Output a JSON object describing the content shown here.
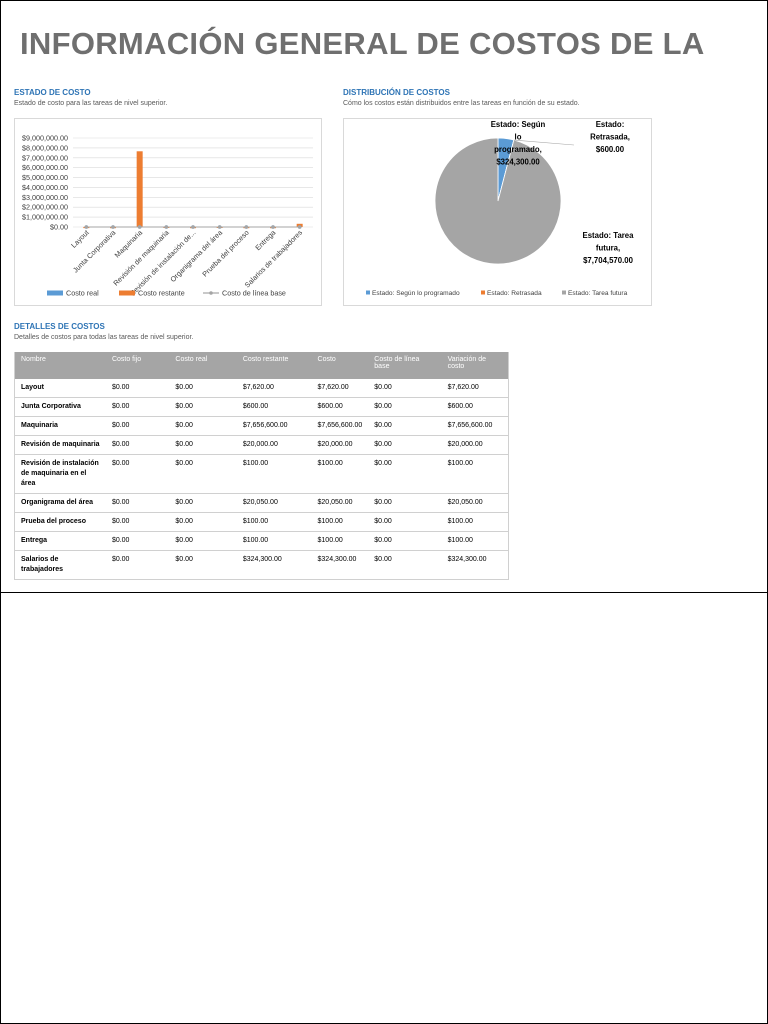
{
  "title": "INFORMACIÓN GENERAL DE COSTOS DE LA",
  "estado": {
    "heading": "ESTADO DE COSTO",
    "subtitle": "Estado de costo para las tareas de nivel superior."
  },
  "distribucion": {
    "heading": "DISTRIBUCIÓN DE COSTOS",
    "subtitle": "Cómo los costos están distribuidos entre las tareas en función de su estado."
  },
  "detalles": {
    "heading": "DETALLES DE COSTOS",
    "subtitle": "Detalles de costos para todas las tareas de nivel superior."
  },
  "chart_data": [
    {
      "type": "bar",
      "categories": [
        "Layout",
        "Junta Corporativa",
        "Maquinaria",
        "Revisión de maquinaria",
        "Revisión de instalación de...",
        "Organigrama del área",
        "Prueba del proceso",
        "Entrega",
        "Salarios de trabajadores"
      ],
      "series": [
        {
          "name": "Costo real",
          "color": "#5b9bd5",
          "values": [
            0,
            0,
            0,
            0,
            0,
            0,
            0,
            0,
            0
          ]
        },
        {
          "name": "Costo restante",
          "color": "#ed7d31",
          "values": [
            7620,
            600,
            7656600,
            20000,
            100,
            20050,
            100,
            100,
            324300
          ]
        },
        {
          "name": "Costo de línea base",
          "color": "#a5a5a5",
          "values": [
            0,
            0,
            0,
            0,
            0,
            0,
            0,
            0,
            0
          ]
        }
      ],
      "yticks": [
        "$0.00",
        "$1,000,000.00",
        "$2,000,000.00",
        "$3,000,000.00",
        "$4,000,000.00",
        "$5,000,000.00",
        "$6,000,000.00",
        "$7,000,000.00",
        "$8,000,000.00",
        "$9,000,000.00"
      ],
      "ylim": [
        0,
        9000000
      ],
      "legend": "bottom",
      "grid": true
    },
    {
      "type": "pie",
      "slices": [
        {
          "label": "Estado: Según lo programado",
          "value": 324300,
          "color": "#5b9bd5",
          "data_label": [
            "Estado: Según",
            "lo",
            "programado,",
            "$324,300.00"
          ]
        },
        {
          "label": "Estado: Retrasada",
          "value": 600,
          "color": "#ed7d31",
          "data_label": [
            "Estado:",
            "Retrasada,",
            "$600.00"
          ]
        },
        {
          "label": "Estado: Tarea futura",
          "value": 7704570,
          "color": "#a5a5a5",
          "data_label": [
            "Estado: Tarea",
            "futura,",
            "$7,704,570.00"
          ]
        }
      ],
      "legend": "bottom"
    }
  ],
  "table": {
    "headers": [
      "Nombre",
      "Costo fijo",
      "Costo real",
      "Costo restante",
      "Costo",
      "Costo de línea base",
      "Variación de costo"
    ],
    "rows": [
      [
        "Layout",
        "$0.00",
        "$0.00",
        "$7,620.00",
        "$7,620.00",
        "$0.00",
        "$7,620.00"
      ],
      [
        "Junta Corporativa",
        "$0.00",
        "$0.00",
        "$600.00",
        "$600.00",
        "$0.00",
        "$600.00"
      ],
      [
        "Maquinaria",
        "$0.00",
        "$0.00",
        "$7,656,600.00",
        "$7,656,600.00",
        "$0.00",
        "$7,656,600.00"
      ],
      [
        "Revisión de maquinaria",
        "$0.00",
        "$0.00",
        "$20,000.00",
        "$20,000.00",
        "$0.00",
        "$20,000.00"
      ],
      [
        "Revisión de instalación de maquinaria en el área",
        "$0.00",
        "$0.00",
        "$100.00",
        "$100.00",
        "$0.00",
        "$100.00"
      ],
      [
        "Organigrama del área",
        "$0.00",
        "$0.00",
        "$20,050.00",
        "$20,050.00",
        "$0.00",
        "$20,050.00"
      ],
      [
        "Prueba del proceso",
        "$0.00",
        "$0.00",
        "$100.00",
        "$100.00",
        "$0.00",
        "$100.00"
      ],
      [
        "Entrega",
        "$0.00",
        "$0.00",
        "$100.00",
        "$100.00",
        "$0.00",
        "$100.00"
      ],
      [
        "Salarios de trabajadores",
        "$0.00",
        "$0.00",
        "$324,300.00",
        "$324,300.00",
        "$0.00",
        "$324,300.00"
      ]
    ]
  }
}
